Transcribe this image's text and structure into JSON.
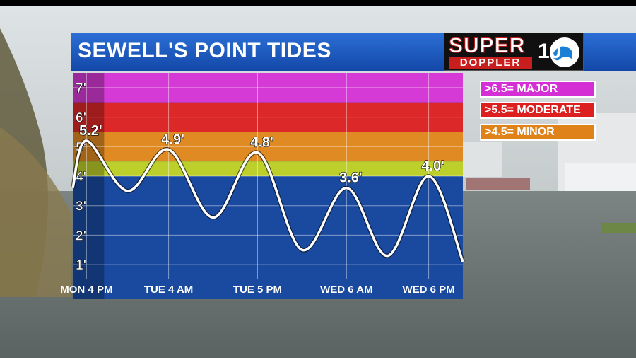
{
  "header": {
    "title": "SEWELL'S POINT TIDES"
  },
  "logo": {
    "super": "SUPER",
    "doppler": "DOPPLER",
    "number": "10"
  },
  "legend": [
    {
      "label": ">6.5= MAJOR",
      "color": "#d42fd4"
    },
    {
      "label": ">5.5= MODERATE",
      "color": "#dc2020"
    },
    {
      "label": ">4.5= MINOR",
      "color": "#e0821a"
    }
  ],
  "chart_data": {
    "type": "line",
    "title": "SEWELL'S POINT TIDES",
    "xlabel": "",
    "ylabel": "",
    "ylim": [
      0.5,
      7.5
    ],
    "y_ticks": [
      "1'",
      "2'",
      "3'",
      "4'",
      "5'",
      "6'",
      "7'"
    ],
    "y_tick_values": [
      1,
      2,
      3,
      4,
      5,
      6,
      7
    ],
    "x_ticks": [
      "MON 4 PM",
      "TUE 4 AM",
      "TUE 5 PM",
      "WED 6 AM",
      "WED 6 PM"
    ],
    "x_tick_hours": [
      0,
      12,
      25,
      38,
      50
    ],
    "bands": [
      {
        "from": 6.5,
        "to": 7.5,
        "color": "#d63ad6",
        "label": "MAJOR"
      },
      {
        "from": 5.5,
        "to": 6.5,
        "color": "#dc2828",
        "label": "MODERATE"
      },
      {
        "from": 4.5,
        "to": 5.5,
        "color": "#df8a22",
        "label": "MINOR"
      },
      {
        "from": 4.0,
        "to": 4.5,
        "color": "#bccf2a",
        "label": ""
      },
      {
        "from": 0.5,
        "to": 4.0,
        "color": "#1a4aa0",
        "label": ""
      }
    ],
    "series": [
      {
        "x_hours": [
          -2,
          0,
          6,
          12,
          18.5,
          25,
          31.5,
          38,
          44,
          50,
          55
        ],
        "values": [
          3.6,
          5.2,
          3.5,
          4.9,
          2.6,
          4.8,
          1.5,
          3.6,
          1.3,
          4.0,
          1.1
        ]
      }
    ],
    "peak_labels": [
      {
        "x_hour": 0,
        "value": 5.2,
        "text": "5.2'"
      },
      {
        "x_hour": 12,
        "value": 4.9,
        "text": "4.9'"
      },
      {
        "x_hour": 25,
        "value": 4.8,
        "text": "4.8'"
      },
      {
        "x_hour": 38,
        "value": 3.6,
        "text": "3.6'"
      },
      {
        "x_hour": 50,
        "value": 4.0,
        "text": "4.0'"
      }
    ],
    "current_time_hour": 0
  }
}
